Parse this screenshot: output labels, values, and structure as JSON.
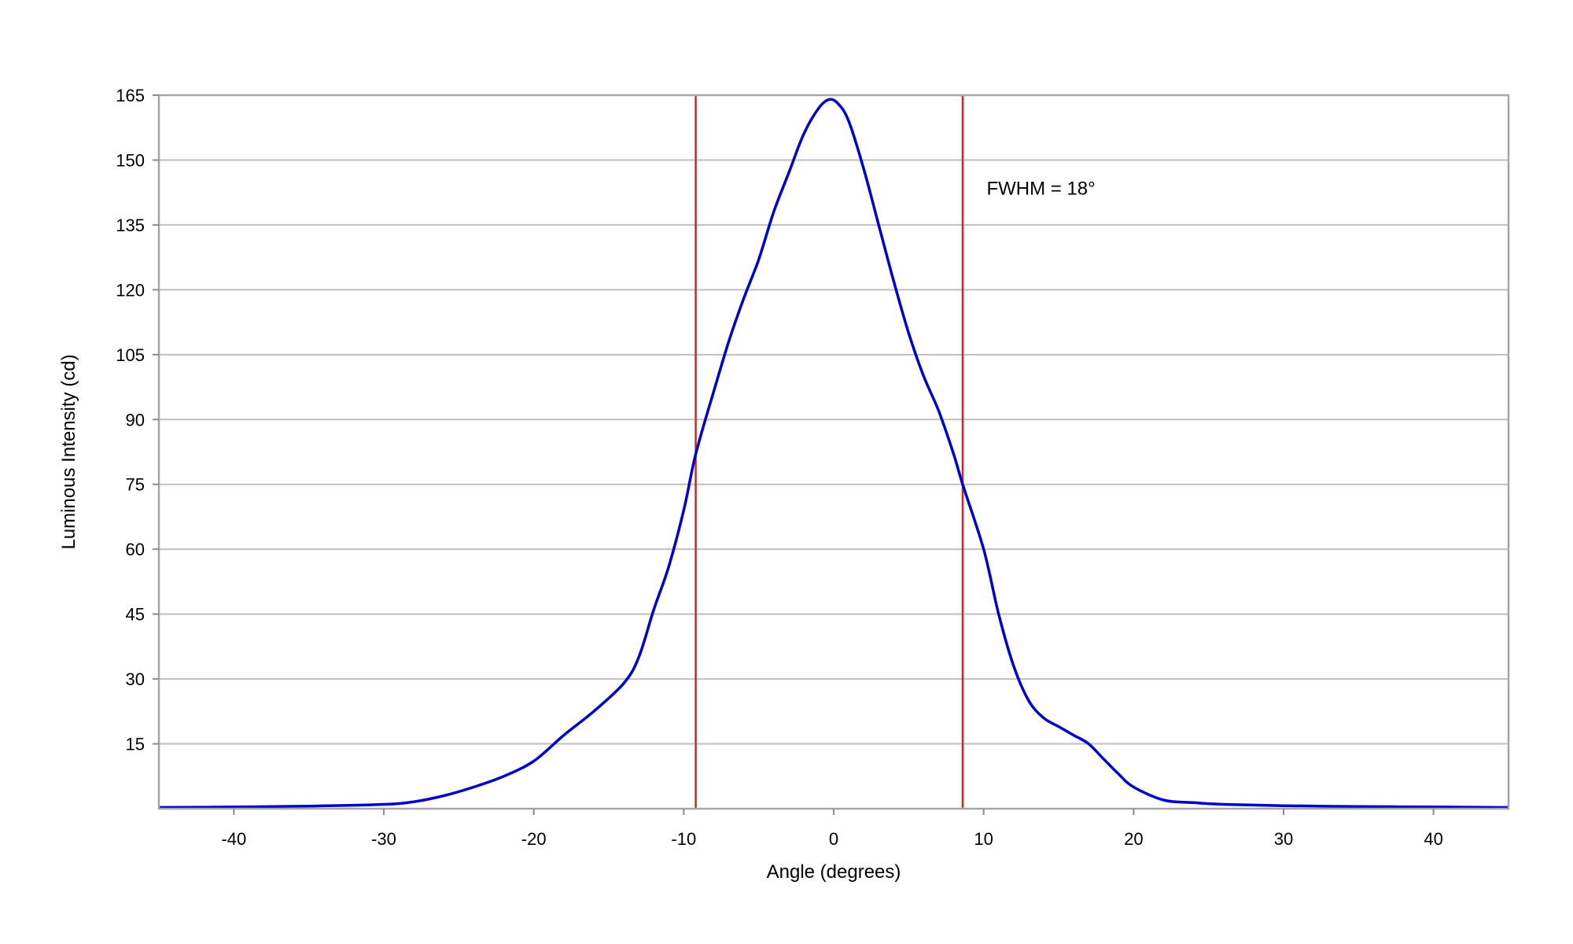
{
  "chart_data": {
    "type": "line",
    "title": "",
    "xlabel": "Angle (degrees)",
    "ylabel": "Luminous Intensity (cd)",
    "xlim": [
      -45,
      45
    ],
    "ylim": [
      0,
      165
    ],
    "xticks": [
      -40,
      -30,
      -20,
      -10,
      0,
      10,
      20,
      30,
      40
    ],
    "yticks": [
      15,
      30,
      45,
      60,
      75,
      90,
      105,
      120,
      135,
      150,
      165
    ],
    "grid": "horizontal",
    "series": [
      {
        "color": "#0000cc",
        "x": [
          -45,
          -40,
          -35,
          -30,
          -28,
          -26,
          -24,
          -22,
          -20,
          -18,
          -16,
          -14,
          -13,
          -12,
          -11,
          -10,
          -9.2,
          -8,
          -7,
          -6,
          -5,
          -4,
          -3,
          -2,
          -1,
          -0.3,
          0.3,
          1,
          2,
          3,
          4,
          5,
          6,
          7,
          8,
          8.6,
          10,
          11,
          12,
          13,
          14,
          15,
          16,
          17,
          18,
          19,
          20,
          22,
          24,
          26,
          30,
          35,
          40,
          45
        ],
        "y": [
          0.3,
          0.4,
          0.6,
          1.0,
          1.6,
          3.0,
          5.0,
          7.5,
          11.0,
          17.0,
          22.5,
          29.0,
          35.0,
          46.0,
          56.0,
          69.0,
          82.0,
          96.5,
          108.0,
          118.0,
          127.0,
          138.0,
          147.0,
          156.0,
          162.0,
          164.0,
          163.0,
          159.0,
          148.0,
          135.0,
          122.0,
          110.0,
          100.0,
          92.0,
          82.0,
          75.0,
          60.0,
          45.0,
          33.0,
          25.0,
          21.0,
          19.0,
          17.0,
          15.0,
          11.5,
          8.0,
          5.0,
          2.0,
          1.4,
          1.0,
          0.7,
          0.5,
          0.4,
          0.3
        ]
      }
    ],
    "vlines": [
      {
        "x": -9.2,
        "color": "#e02020"
      },
      {
        "x": 8.6,
        "color": "#e02020"
      }
    ],
    "annotations": [
      {
        "text": "FWHM = 18°",
        "x": 10.2,
        "y": 142
      }
    ]
  }
}
